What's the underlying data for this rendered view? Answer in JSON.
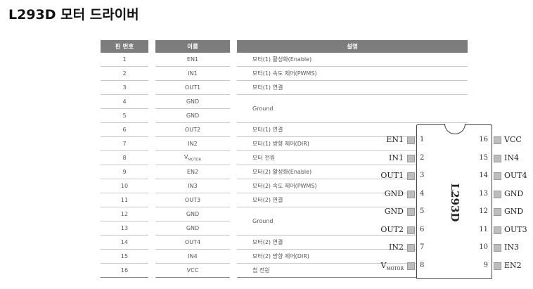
{
  "title": "L293D 모터 드라이버",
  "table": {
    "headers": [
      "핀 번호",
      "이름",
      "설명"
    ],
    "rows": [
      {
        "num": "1",
        "name": "EN1",
        "desc": "모터(1) 활성화(Enable)"
      },
      {
        "num": "2",
        "name": "IN1",
        "desc": "모터(1) 속도 제어(PWMS)"
      },
      {
        "num": "3",
        "name": "OUT1",
        "desc": "모터(1) 연결"
      },
      {
        "num": "4",
        "name": "GND",
        "desc": "Ground"
      },
      {
        "num": "5",
        "name": "GND",
        "desc": ""
      },
      {
        "num": "6",
        "name": "OUT2",
        "desc": "모터(1) 연결"
      },
      {
        "num": "7",
        "name": "IN2",
        "desc": "모터(1) 방향 제어(DIR)"
      },
      {
        "num": "8",
        "name": "V",
        "name_sub": "MOTOR",
        "desc": "모터 전원"
      },
      {
        "num": "9",
        "name": "EN2",
        "desc": "모터(2) 활성화(Enable)"
      },
      {
        "num": "10",
        "name": "IN3",
        "desc": "모터(2) 속도 제어(PWMS)"
      },
      {
        "num": "11",
        "name": "OUT3",
        "desc": "모터(2) 연결"
      },
      {
        "num": "12",
        "name": "GND",
        "desc": "Ground"
      },
      {
        "num": "13",
        "name": "GND",
        "desc": ""
      },
      {
        "num": "14",
        "name": "OUT4",
        "desc": "모터(2) 연결"
      },
      {
        "num": "15",
        "name": "IN4",
        "desc": "모터(2) 방향 제어(DIR)"
      },
      {
        "num": "16",
        "name": "VCC",
        "desc": "칩 전원"
      }
    ]
  },
  "chip": {
    "label": "L293D",
    "left_pins": [
      {
        "num": "1",
        "name": "EN1"
      },
      {
        "num": "2",
        "name": "IN1"
      },
      {
        "num": "3",
        "name": "OUT1"
      },
      {
        "num": "4",
        "name": "GND"
      },
      {
        "num": "5",
        "name": "GND"
      },
      {
        "num": "6",
        "name": "OUT2"
      },
      {
        "num": "7",
        "name": "IN2"
      },
      {
        "num": "8",
        "name": "V",
        "sub": "MOTOR"
      }
    ],
    "right_pins": [
      {
        "num": "16",
        "name": "VCC"
      },
      {
        "num": "15",
        "name": "IN4"
      },
      {
        "num": "14",
        "name": "OUT4"
      },
      {
        "num": "13",
        "name": "GND"
      },
      {
        "num": "12",
        "name": "GND"
      },
      {
        "num": "11",
        "name": "OUT3"
      },
      {
        "num": "10",
        "name": "IN3"
      },
      {
        "num": "9",
        "name": "EN2"
      }
    ]
  }
}
